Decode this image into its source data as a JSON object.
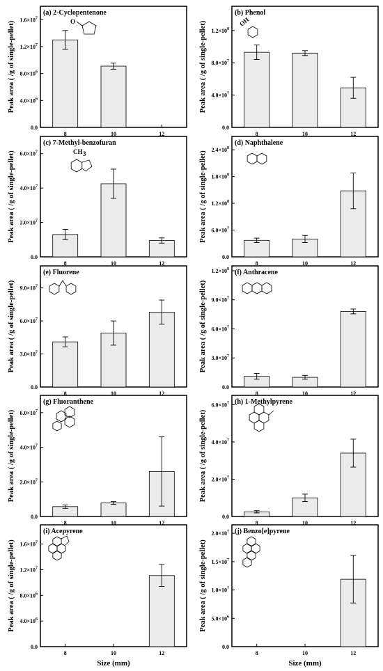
{
  "chart_data": [
    {
      "id": "a",
      "type": "bar",
      "title": "(a) 2-Cyclopentenone",
      "ylabel": "Peak area (  /g of single-pellet)",
      "xlabel": "",
      "categories": [
        "8",
        "10",
        "12"
      ],
      "values": [
        13000000,
        9100000,
        0
      ],
      "errors": [
        1400000,
        450000,
        0
      ],
      "ylim": [
        0,
        18000000
      ],
      "yticks": [
        0,
        4000000,
        8000000,
        12000000,
        16000000
      ],
      "ytick_labels": [
        {
          "m": "0.0",
          "e": ""
        },
        {
          "m": "4.0×10",
          "e": "6"
        },
        {
          "m": "8.0×10",
          "e": "6"
        },
        {
          "m": "1.2×10",
          "e": "7"
        },
        {
          "m": "1.6×10",
          "e": "7"
        }
      ],
      "molecule_icon": "cyclopentenone-structure",
      "molecule_text": "O"
    },
    {
      "id": "b",
      "type": "bar",
      "title": "(b) Phenol",
      "ylabel": "Peak area (  /g of single-pellet)",
      "xlabel": "",
      "categories": [
        "8",
        "10",
        "12"
      ],
      "values": [
        93000000,
        92000000,
        49000000
      ],
      "errors": [
        9000000,
        3000000,
        13000000
      ],
      "ylim": [
        0,
        150000000
      ],
      "yticks": [
        0,
        40000000,
        80000000,
        120000000
      ],
      "ytick_labels": [
        {
          "m": "0.0",
          "e": ""
        },
        {
          "m": "4.0×10",
          "e": "7"
        },
        {
          "m": "8.0×10",
          "e": "7"
        },
        {
          "m": "1.2×10",
          "e": "8"
        }
      ],
      "molecule_icon": "phenol-structure",
      "molecule_text": "OH"
    },
    {
      "id": "c",
      "type": "bar",
      "title": "(c) 7-Methyl-benzofuran",
      "ylabel": "Peak area (  /g of single-pellet)",
      "xlabel": "",
      "categories": [
        "8",
        "10",
        "12"
      ],
      "values": [
        13000000,
        42500000,
        9500000
      ],
      "errors": [
        3000000,
        8500000,
        1500000
      ],
      "ylim": [
        0,
        70000000
      ],
      "yticks": [
        0,
        20000000,
        40000000,
        60000000
      ],
      "ytick_labels": [
        {
          "m": "0.0",
          "e": ""
        },
        {
          "m": "2.0×10",
          "e": "7"
        },
        {
          "m": "4.0×10",
          "e": "7"
        },
        {
          "m": "6.0×10",
          "e": "7"
        }
      ],
      "molecule_icon": "methylbenzofuran-structure",
      "molecule_text": "CH3"
    },
    {
      "id": "d",
      "type": "bar",
      "title": "(d) Naphthalene",
      "ylabel": "Peak area (  /g of single-pellet)",
      "xlabel": "",
      "categories": [
        "8",
        "10",
        "12"
      ],
      "values": [
        37000000,
        40000000,
        148000000
      ],
      "errors": [
        5000000,
        8000000,
        40000000
      ],
      "ylim": [
        0,
        270000000
      ],
      "yticks": [
        0,
        60000000,
        120000000,
        180000000,
        240000000
      ],
      "ytick_labels": [
        {
          "m": "0.0",
          "e": ""
        },
        {
          "m": "6.0×10",
          "e": "7"
        },
        {
          "m": "1.2×10",
          "e": "8"
        },
        {
          "m": "1.8×10",
          "e": "8"
        },
        {
          "m": "2.4×10",
          "e": "8"
        }
      ],
      "molecule_icon": "naphthalene-structure",
      "molecule_text": ""
    },
    {
      "id": "e",
      "type": "bar",
      "title": "(e) Fluorene",
      "ylabel": "Peak area (  /g of single-pellet)",
      "xlabel": "",
      "categories": [
        "8",
        "10",
        "12"
      ],
      "values": [
        41000000,
        49000000,
        68000000
      ],
      "errors": [
        4500000,
        11000000,
        11000000
      ],
      "ylim": [
        0,
        110000000
      ],
      "yticks": [
        0,
        30000000,
        60000000,
        90000000
      ],
      "ytick_labels": [
        {
          "m": "0.0",
          "e": ""
        },
        {
          "m": "3.0×10",
          "e": "7"
        },
        {
          "m": "6.0×10",
          "e": "7"
        },
        {
          "m": "9.0×10",
          "e": "7"
        }
      ],
      "molecule_icon": "fluorene-structure",
      "molecule_text": ""
    },
    {
      "id": "f",
      "type": "bar",
      "title": "(f) Anthracene",
      "ylabel": "Peak area (  /g of single-pellet)",
      "xlabel": "",
      "categories": [
        "8",
        "10",
        "12"
      ],
      "values": [
        11000000,
        10000000,
        78000000
      ],
      "errors": [
        3000000,
        2000000,
        2500000
      ],
      "ylim": [
        0,
        125000000
      ],
      "yticks": [
        0,
        30000000,
        60000000,
        90000000,
        120000000
      ],
      "ytick_labels": [
        {
          "m": "0.0",
          "e": ""
        },
        {
          "m": "3.0×10",
          "e": "7"
        },
        {
          "m": "6.0×10",
          "e": "7"
        },
        {
          "m": "9.0×10",
          "e": "7"
        },
        {
          "m": "1.2×10",
          "e": "8"
        }
      ],
      "molecule_icon": "anthracene-structure",
      "molecule_text": ""
    },
    {
      "id": "g",
      "type": "bar",
      "title": "(g) Fluoranthene",
      "ylabel": "Peak area (  /g of single-pellet)",
      "xlabel": "",
      "categories": [
        "8",
        "10",
        "12"
      ],
      "values": [
        5700000,
        7800000,
        26000000
      ],
      "errors": [
        1000000,
        800000,
        20000000
      ],
      "ylim": [
        0,
        70000000
      ],
      "yticks": [
        0,
        20000000,
        40000000,
        60000000
      ],
      "ytick_labels": [
        {
          "m": "0.0",
          "e": ""
        },
        {
          "m": "2.0×10",
          "e": "7"
        },
        {
          "m": "4.0×10",
          "e": "7"
        },
        {
          "m": "6.0×10",
          "e": "7"
        }
      ],
      "molecule_icon": "fluoranthene-structure",
      "molecule_text": ""
    },
    {
      "id": "h",
      "type": "bar",
      "title": "(h) 1-Methylpyrene",
      "ylabel": "Peak area (  /g of single-pellet)",
      "xlabel": "",
      "categories": [
        "8",
        "10",
        "12"
      ],
      "values": [
        2500000,
        10000000,
        34000000
      ],
      "errors": [
        600000,
        2000000,
        7500000
      ],
      "ylim": [
        0,
        65000000
      ],
      "yticks": [
        0,
        20000000,
        40000000,
        60000000
      ],
      "ytick_labels": [
        {
          "m": "0.0",
          "e": ""
        },
        {
          "m": "2.0×10",
          "e": "7"
        },
        {
          "m": "4.0×10",
          "e": "7"
        },
        {
          "m": "6.0×10",
          "e": "7"
        }
      ],
      "molecule_icon": "methylpyrene-structure",
      "molecule_text": ""
    },
    {
      "id": "i",
      "type": "bar",
      "title": "(i) Acepyrene",
      "ylabel": "Peak area (  /g of single-pellet)",
      "xlabel": "Size (mm)",
      "categories": [
        "8",
        "10",
        "12"
      ],
      "values": [
        0,
        0,
        11100000
      ],
      "errors": [
        0,
        0,
        1700000
      ],
      "ylim": [
        0,
        19000000
      ],
      "yticks": [
        0,
        4000000,
        8000000,
        12000000,
        16000000
      ],
      "ytick_labels": [
        {
          "m": "0.0",
          "e": ""
        },
        {
          "m": "4.0×10",
          "e": "6"
        },
        {
          "m": "8.0×10",
          "e": "6"
        },
        {
          "m": "1.2×10",
          "e": "7"
        },
        {
          "m": "1.6×10",
          "e": "7"
        }
      ],
      "molecule_icon": "acepyrene-structure",
      "molecule_text": ""
    },
    {
      "id": "j",
      "type": "bar",
      "title": "(j) Benzo[e]pyrene",
      "ylabel": "Peak area (  /g of single-pellet)",
      "xlabel": "Size (mm)",
      "categories": [
        "8",
        "10",
        "12"
      ],
      "values": [
        0,
        0,
        11900000
      ],
      "errors": [
        0,
        0,
        4200000
      ],
      "ylim": [
        0,
        21500000
      ],
      "yticks": [
        0,
        5000000,
        10000000,
        15000000,
        20000000
      ],
      "ytick_labels": [
        {
          "m": "0.0",
          "e": ""
        },
        {
          "m": "5.0×10",
          "e": "6"
        },
        {
          "m": "1.0×10",
          "e": "7"
        },
        {
          "m": "1.5×10",
          "e": "7"
        },
        {
          "m": "2.0×10",
          "e": "7"
        }
      ],
      "molecule_icon": "benzopyrene-structure",
      "molecule_text": ""
    }
  ]
}
